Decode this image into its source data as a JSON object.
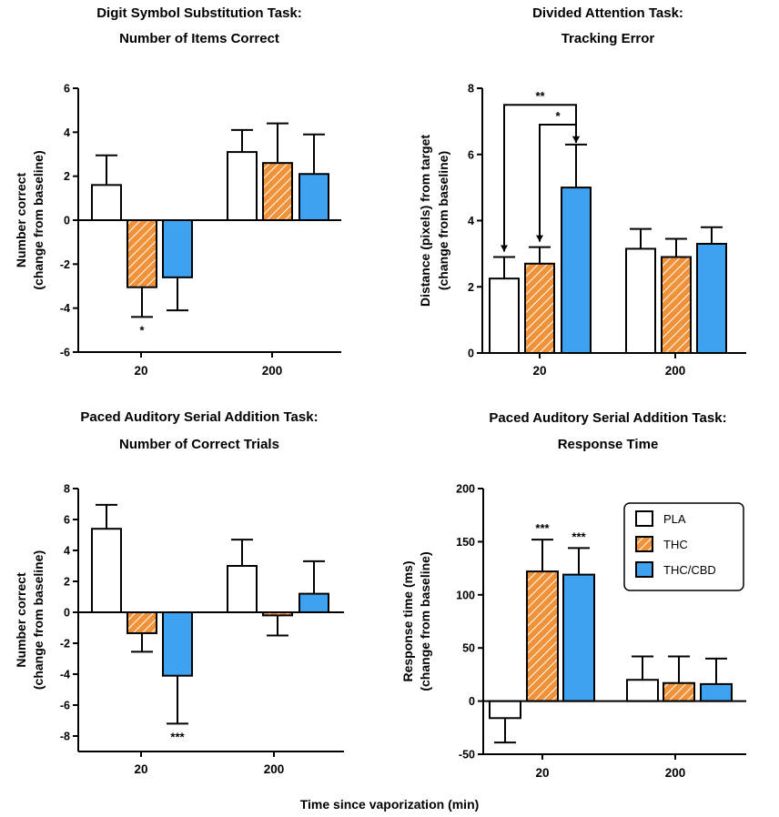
{
  "figure": {
    "xlabel": "Time since vaporization (min)",
    "legend": {
      "position": "top-right of bottom-right panel",
      "entries": [
        {
          "label": "PLA",
          "fill": "white"
        },
        {
          "label": "THC",
          "fill": "orange-hatched"
        },
        {
          "label": "THC/CBD",
          "fill": "blue"
        }
      ]
    },
    "colors": {
      "PLA": "#ffffff",
      "THC": "#f0923a",
      "THC_CBD": "#3fa2f0",
      "outline": "#000000"
    }
  },
  "chart_data": [
    {
      "type": "bar",
      "title": [
        "Digit Symbol Substitution Task:",
        "Number of Items Correct"
      ],
      "ylabel": [
        "Number correct",
        "(change from baseline)"
      ],
      "categories": [
        "20",
        "200"
      ],
      "ylim": [
        -6,
        6
      ],
      "yticks": [
        "-6",
        "-4",
        "-2",
        "0",
        "2",
        "4",
        "6"
      ],
      "series": [
        {
          "name": "PLA",
          "values": [
            1.6,
            3.1
          ],
          "errors": [
            1.35,
            1.0
          ]
        },
        {
          "name": "THC",
          "values": [
            -3.05,
            2.6
          ],
          "errors": [
            1.35,
            1.8
          ]
        },
        {
          "name": "THC/CBD",
          "values": [
            -2.6,
            2.1
          ],
          "errors": [
            1.5,
            1.8
          ]
        }
      ],
      "annotations": [
        {
          "text": "*",
          "category": 0,
          "series": 1
        }
      ],
      "brackets": []
    },
    {
      "type": "bar",
      "title": [
        "Divided Attention Task:",
        "Tracking Error"
      ],
      "ylabel": [
        "Distance (pixels) from target",
        "(change from baseline)"
      ],
      "categories": [
        "20",
        "200"
      ],
      "ylim": [
        0,
        8
      ],
      "yticks": [
        "0",
        "2",
        "4",
        "6",
        "8"
      ],
      "series": [
        {
          "name": "PLA",
          "values": [
            2.25,
            3.15
          ],
          "errors": [
            0.65,
            0.6
          ]
        },
        {
          "name": "THC",
          "values": [
            2.7,
            2.9
          ],
          "errors": [
            0.5,
            0.55
          ]
        },
        {
          "name": "THC/CBD",
          "values": [
            5.0,
            3.3
          ],
          "errors": [
            1.3,
            0.5
          ]
        }
      ],
      "annotations": [],
      "brackets": [
        {
          "text": "**",
          "from": 0,
          "to": 2,
          "level": 7.5
        },
        {
          "text": "*",
          "from": 1,
          "to": 2,
          "level": 6.9
        }
      ]
    },
    {
      "type": "bar",
      "title": [
        "Paced Auditory Serial Addition Task:",
        "Number of Correct Trials"
      ],
      "ylabel": [
        "Number correct",
        "(change from baseline)"
      ],
      "categories": [
        "20",
        "200"
      ],
      "ylim": [
        -9,
        8
      ],
      "yticks": [
        "-8",
        "-6",
        "-4",
        "-2",
        "0",
        "2",
        "4",
        "6",
        "8"
      ],
      "series": [
        {
          "name": "PLA",
          "values": [
            5.4,
            3.0
          ],
          "errors": [
            1.55,
            1.7
          ]
        },
        {
          "name": "THC",
          "values": [
            -1.35,
            -0.2
          ],
          "errors": [
            1.2,
            1.3
          ]
        },
        {
          "name": "THC/CBD",
          "values": [
            -4.1,
            1.2
          ],
          "errors": [
            3.1,
            2.1
          ]
        }
      ],
      "annotations": [
        {
          "text": "***",
          "category": 0,
          "series": 2
        }
      ],
      "brackets": []
    },
    {
      "type": "bar",
      "title": [
        "Paced Auditory Serial Addition Task:",
        "Response Time"
      ],
      "ylabel": [
        "Response time (ms)",
        "(change from baseline)"
      ],
      "categories": [
        "20",
        "200"
      ],
      "ylim": [
        -50,
        200
      ],
      "yticks": [
        "-50",
        "0",
        "50",
        "100",
        "150",
        "200"
      ],
      "series": [
        {
          "name": "PLA",
          "values": [
            -16,
            20
          ],
          "errors": [
            23,
            22
          ]
        },
        {
          "name": "THC",
          "values": [
            122,
            17
          ],
          "errors": [
            30,
            25
          ]
        },
        {
          "name": "THC/CBD",
          "values": [
            119,
            16
          ],
          "errors": [
            25,
            24
          ]
        }
      ],
      "annotations": [
        {
          "text": "***",
          "category": 0,
          "series": 1
        },
        {
          "text": "***",
          "category": 0,
          "series": 2
        }
      ],
      "brackets": []
    }
  ]
}
